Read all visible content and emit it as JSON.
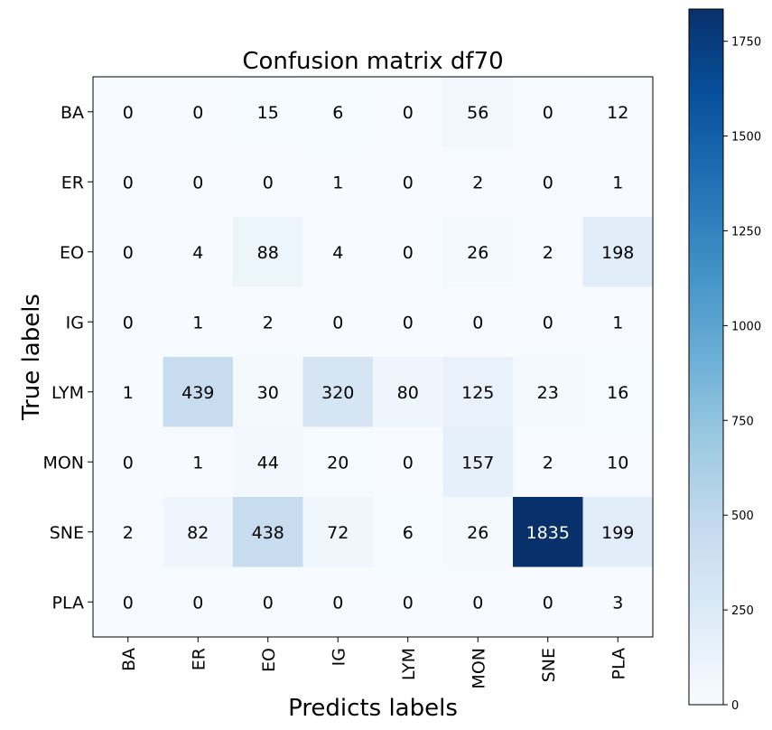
{
  "chart_data": {
    "type": "heatmap",
    "title": "Confusion matrix df70",
    "xlabel": "Predicts labels",
    "ylabel": "True labels",
    "x_categories": [
      "BA",
      "ER",
      "EO",
      "IG",
      "LYM",
      "MON",
      "SNE",
      "PLA"
    ],
    "y_categories": [
      "BA",
      "ER",
      "EO",
      "IG",
      "LYM",
      "MON",
      "SNE",
      "PLA"
    ],
    "values": [
      [
        0,
        0,
        15,
        6,
        0,
        56,
        0,
        12
      ],
      [
        0,
        0,
        0,
        1,
        0,
        2,
        0,
        1
      ],
      [
        0,
        4,
        88,
        4,
        0,
        26,
        2,
        198
      ],
      [
        0,
        1,
        2,
        0,
        0,
        0,
        0,
        1
      ],
      [
        1,
        439,
        30,
        320,
        80,
        125,
        23,
        16
      ],
      [
        0,
        1,
        44,
        20,
        0,
        157,
        2,
        10
      ],
      [
        2,
        82,
        438,
        72,
        6,
        26,
        1835,
        199
      ],
      [
        0,
        0,
        0,
        0,
        0,
        0,
        0,
        3
      ]
    ],
    "colormap": "Blues",
    "colorbar": {
      "range": [
        0,
        1835
      ],
      "ticks": [
        0,
        250,
        500,
        750,
        1000,
        1250,
        1500,
        1750
      ]
    }
  }
}
